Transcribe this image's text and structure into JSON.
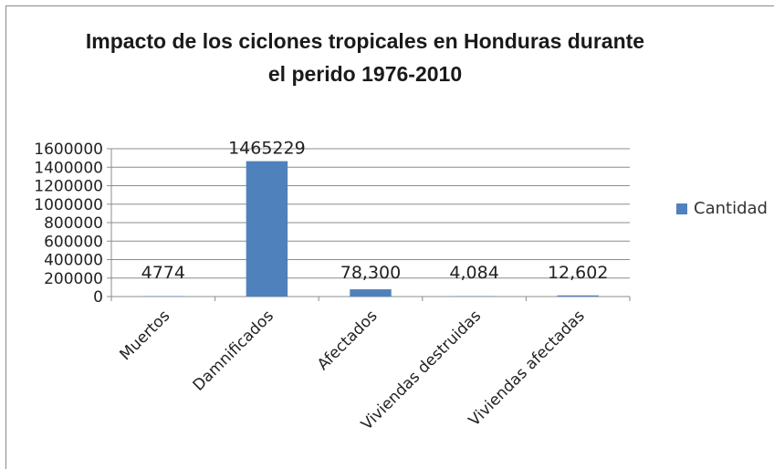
{
  "chart_data": {
    "type": "bar",
    "title_line1": "Impacto de los ciclones tropicales en Honduras durante",
    "title_line2": "el perido 1976-2010",
    "categories": [
      "Muertos",
      "Damnificados",
      "Afectados",
      "Viviendas destruidas",
      "Viviendas afectadas"
    ],
    "series": [
      {
        "name": "Cantidad",
        "values": [
          4774,
          1465229,
          78300,
          4084,
          12602
        ]
      }
    ],
    "data_labels": [
      "4774",
      "1465229",
      "78,300",
      "4,084",
      "12,602"
    ],
    "y_ticks": [
      "1600000",
      "1400000",
      "1200000",
      "1000000",
      "800000",
      "600000",
      "400000",
      "200000",
      "0"
    ],
    "ylim": [
      0,
      1600000
    ],
    "grid": true,
    "legend_position": "right",
    "bar_color": "#4f81bd"
  }
}
